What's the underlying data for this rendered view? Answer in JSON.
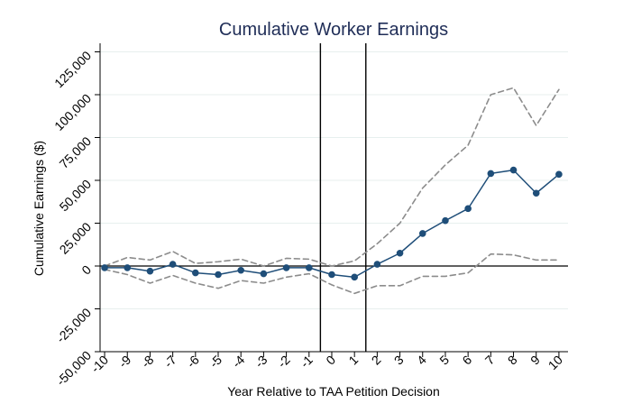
{
  "chart_data": {
    "type": "line",
    "title": "Cumulative Worker Earnings",
    "xlabel": "Year Relative to TAA Petition Decision",
    "ylabel": "Cumulative Earnings ($)",
    "xlim": [
      -10.2,
      10.4
    ],
    "ylim": [
      -50000,
      130000
    ],
    "x_ticks": [
      -10,
      -9,
      -8,
      -7,
      -6,
      -5,
      -4,
      -3,
      -2,
      -1,
      0,
      1,
      2,
      3,
      4,
      5,
      6,
      7,
      8,
      9,
      10
    ],
    "x_tick_labels": [
      "-10",
      "-9",
      "-8",
      "-7",
      "-6",
      "-5",
      "-4",
      "-3",
      "-2",
      "-1",
      "0",
      "1",
      "2",
      "3",
      "4",
      "5",
      "6",
      "7",
      "8",
      "9",
      "10"
    ],
    "y_ticks": [
      -50000,
      -25000,
      0,
      25000,
      50000,
      75000,
      100000,
      125000
    ],
    "y_tick_labels": [
      "-50,000",
      "-25,000",
      "0",
      "25,000",
      "50,000",
      "75,000",
      "100,000",
      "125,000"
    ],
    "vertical_lines": [
      -0.5,
      1.5
    ],
    "zero_line": 0,
    "grid": "horizontal",
    "series": [
      {
        "name": "estimate",
        "style": "solid-with-markers",
        "color": "#1f4e79",
        "x": [
          -10,
          -9,
          -8,
          -7,
          -6,
          -5,
          -4,
          -3,
          -2,
          -1,
          0,
          1,
          2,
          3,
          4,
          5,
          6,
          7,
          8,
          9,
          10
        ],
        "values": [
          -1000,
          -1000,
          -3000,
          1000,
          -4000,
          -5000,
          -2500,
          -4500,
          -1000,
          -1000,
          -5000,
          -6500,
          1000,
          7500,
          19000,
          26500,
          33500,
          54000,
          56000,
          42500,
          53500
        ]
      },
      {
        "name": "upper confidence bound",
        "style": "dashed",
        "color": "#8c8c8c",
        "x": [
          -10,
          -9,
          -8,
          -7,
          -6,
          -5,
          -4,
          -3,
          -2,
          -1,
          0,
          1,
          2,
          3,
          4,
          5,
          6,
          7,
          8,
          9,
          10
        ],
        "values": [
          0,
          5000,
          3500,
          8500,
          1500,
          2500,
          4000,
          0,
          4500,
          4000,
          0,
          3000,
          13000,
          25000,
          45500,
          59000,
          70500,
          100000,
          104000,
          82000,
          103000
        ]
      },
      {
        "name": "lower confidence bound",
        "style": "dashed",
        "color": "#8c8c8c",
        "x": [
          -10,
          -9,
          -8,
          -7,
          -6,
          -5,
          -4,
          -3,
          -2,
          -1,
          0,
          1,
          2,
          3,
          4,
          5,
          6,
          7,
          8,
          9,
          10
        ],
        "values": [
          -2000,
          -5000,
          -10000,
          -5500,
          -10000,
          -13000,
          -8500,
          -10000,
          -6500,
          -4500,
          -11000,
          -16000,
          -11500,
          -11500,
          -6000,
          -6000,
          -4000,
          7000,
          6500,
          3500,
          3500
        ]
      }
    ]
  }
}
